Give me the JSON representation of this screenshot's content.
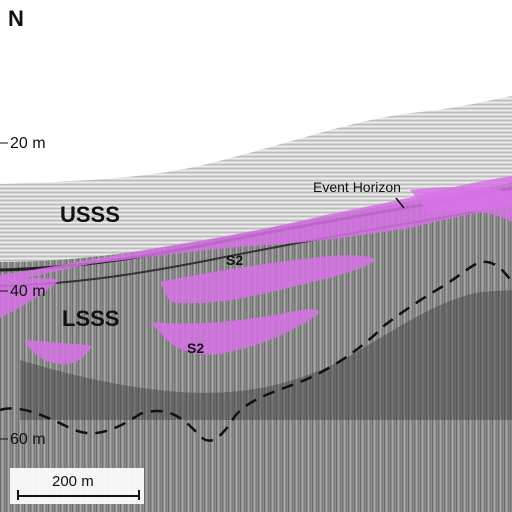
{
  "figure": {
    "orientation_label": "N",
    "depth_labels": [
      "20 m",
      "40 m",
      "60 m"
    ],
    "unit_labels": {
      "upper": "USSS",
      "lower": "LSSS"
    },
    "sequence_labels": [
      "S2",
      "S2"
    ],
    "annotation": "Event Horizon",
    "scale_bar_label": "200 m",
    "colors": {
      "fill_highlight": "#d772e6",
      "seismic_light": "#e4e4e4",
      "seismic_dark": "#2a2a2a",
      "dashed_line": "#111111",
      "text": "#111111"
    }
  }
}
